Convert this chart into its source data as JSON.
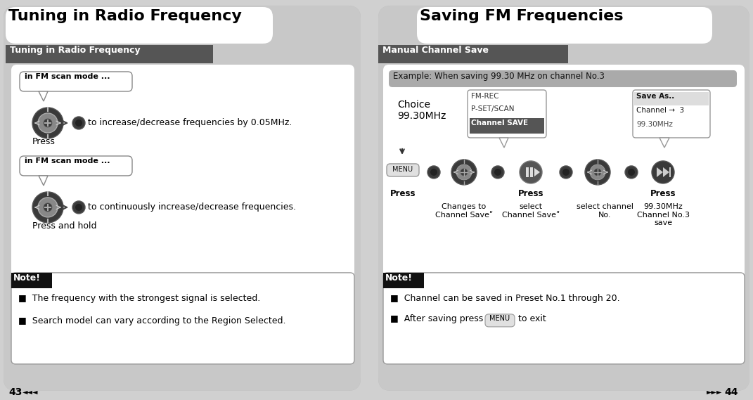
{
  "page_bg": "#d0d0d0",
  "white": "#ffffff",
  "black": "#000000",
  "dark_gray": "#555555",
  "light_gray_panel": "#c8c8c8",
  "note_bg": "#111111",
  "left_title": "Tuning in Radio Frequency",
  "left_subheader": "Tuning in Radio Frequency",
  "left_scan1": "in FM scan mode ...",
  "left_desc1": "to increase/decrease frequencies by 0.05MHz.",
  "left_press1": "Press",
  "left_scan2": "in FM scan mode ...",
  "left_desc2": "to continuously increase/decrease frequencies.",
  "left_press2": "Press and hold",
  "left_note_title": "Note!",
  "left_note1": "■  The frequency with the strongest signal is selected.",
  "left_note2": "■  Search model can vary according to the Region Selected.",
  "left_page": "43",
  "right_title": "Saving FM Frequencies",
  "right_subheader": "Manual Channel Save",
  "right_example": "Example: When saving 99.30 MHz on channel No.3",
  "right_choice_line1": "Choice",
  "right_choice_line2": "99.30MHz",
  "right_press_menu": "Press",
  "right_press_mid": "Press",
  "right_press_last": "Press",
  "right_changes": "Changes to\nChannel Saveʺ",
  "right_select_cs": "select\nChannel Saveʺ",
  "right_select_ch": "select channel\nNo.",
  "right_save_desc": "99.30MHz\nChannel No.3\nsave",
  "right_note_title": "Note!",
  "right_note1": "■  Channel can be saved in Preset No.1 through 20.",
  "right_note2_pre": "■  After saving press",
  "right_note2_btn": "MENU",
  "right_note2_post": "to exit",
  "right_page": "44",
  "menu_popup": [
    "FM-REC",
    "P-SET/SCAN",
    "Channel SAVE"
  ],
  "save_popup": [
    "Save As..",
    "Channel →  3",
    "99.30MHz"
  ]
}
